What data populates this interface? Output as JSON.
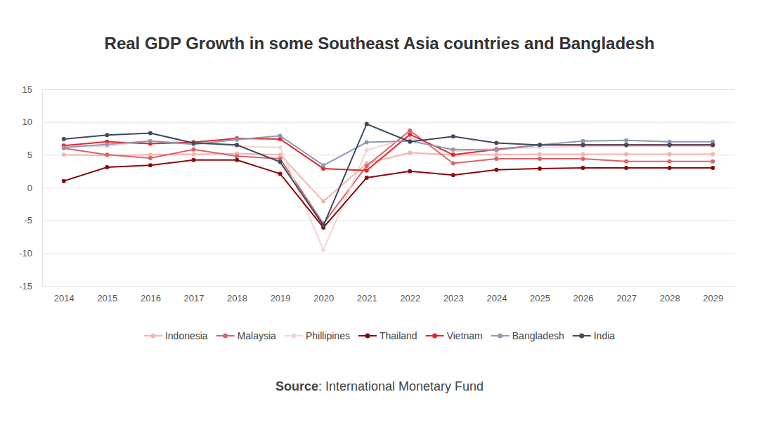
{
  "chart_data": {
    "type": "line",
    "title": "Real GDP Growth in some Southeast Asia countries and Bangladesh",
    "source": "Source: International Monetary Fund",
    "categories": [
      "2014",
      "2015",
      "2016",
      "2017",
      "2018",
      "2019",
      "2020",
      "2021",
      "2022",
      "2023",
      "2024",
      "2025",
      "2026",
      "2027",
      "2028",
      "2029"
    ],
    "ylim": [
      -15,
      15
    ],
    "yticks": [
      -15,
      -10,
      -5,
      0,
      5,
      10,
      15
    ],
    "grid": true,
    "legend": "bottom",
    "series": [
      {
        "name": "Indonesia",
        "color": "#f5b5ad",
        "marker": "circle",
        "values": [
          5.0,
          4.9,
          5.0,
          5.1,
          5.2,
          5.0,
          -2.1,
          3.7,
          5.3,
          5.0,
          5.0,
          5.1,
          5.1,
          5.1,
          5.1,
          5.1
        ]
      },
      {
        "name": "Malaysia",
        "color": "#d9646a",
        "marker": "circle",
        "values": [
          6.0,
          5.0,
          4.5,
          5.8,
          4.8,
          4.4,
          -5.5,
          3.3,
          8.7,
          3.7,
          4.4,
          4.4,
          4.4,
          4.0,
          4.0,
          4.0
        ]
      },
      {
        "name": "Phillipines",
        "color": "#f6d3d3",
        "marker": "circle",
        "values": [
          6.3,
          6.3,
          7.1,
          6.9,
          6.3,
          6.1,
          -9.5,
          5.7,
          7.6,
          5.5,
          6.0,
          6.1,
          6.3,
          6.3,
          6.3,
          6.3
        ]
      },
      {
        "name": "Thailand",
        "color": "#8b0a0a",
        "marker": "circle",
        "values": [
          1.0,
          3.1,
          3.4,
          4.2,
          4.2,
          2.1,
          -6.1,
          1.5,
          2.5,
          1.9,
          2.7,
          2.9,
          3.0,
          3.0,
          3.0,
          3.0
        ]
      },
      {
        "name": "Vietnam",
        "color": "#e8262a",
        "marker": "circle",
        "values": [
          6.4,
          7.0,
          6.7,
          6.9,
          7.5,
          7.4,
          2.9,
          2.6,
          8.1,
          5.0,
          5.8,
          6.5,
          6.5,
          6.5,
          6.5,
          6.5
        ]
      },
      {
        "name": "Bangladesh",
        "color": "#8c9ab5",
        "marker": "circle",
        "values": [
          6.1,
          6.6,
          7.1,
          6.6,
          7.3,
          7.9,
          3.4,
          6.9,
          7.1,
          5.8,
          5.7,
          6.5,
          7.1,
          7.2,
          7.0,
          7.0
        ]
      },
      {
        "name": "India",
        "color": "#3e4a5e",
        "marker": "circle",
        "values": [
          7.4,
          8.0,
          8.3,
          6.8,
          6.5,
          3.9,
          -5.8,
          9.7,
          7.0,
          7.8,
          6.8,
          6.5,
          6.5,
          6.5,
          6.5,
          6.5
        ]
      }
    ]
  }
}
